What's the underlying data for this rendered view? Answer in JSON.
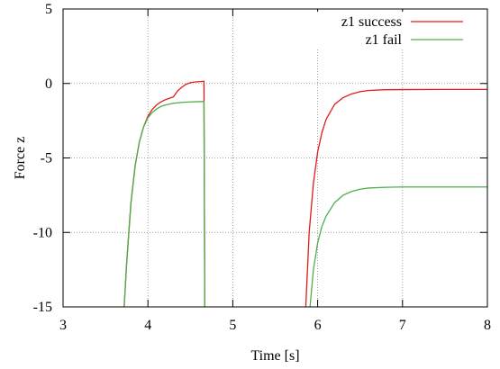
{
  "chart_data": {
    "type": "line",
    "title": "",
    "xlabel": "Time [s]",
    "ylabel": "Force z",
    "xlim": [
      3,
      8
    ],
    "ylim": [
      -15,
      5
    ],
    "xticks": [
      3,
      4,
      5,
      6,
      7,
      8
    ],
    "yticks": [
      -15,
      -10,
      -5,
      0,
      5
    ],
    "grid": true,
    "legend_position": "top-right",
    "series": [
      {
        "name": "z1 success",
        "color": "#e41a1c",
        "segments": [
          {
            "x": [
              3.72,
              3.75,
              3.8,
              3.85,
              3.9,
              3.95,
              4.0,
              4.05,
              4.1,
              4.15,
              4.2,
              4.3,
              4.35,
              4.4,
              4.45,
              4.5,
              4.55,
              4.6,
              4.66,
              4.67
            ],
            "y": [
              -15,
              -12,
              -8,
              -5.5,
              -3.9,
              -2.9,
              -2.2,
              -1.75,
              -1.45,
              -1.25,
              -1.1,
              -0.9,
              -0.5,
              -0.25,
              -0.05,
              0.05,
              0.1,
              0.12,
              0.15,
              -15
            ]
          },
          {
            "x": [
              5.86,
              5.9,
              5.95,
              6.0,
              6.05,
              6.1,
              6.2,
              6.3,
              6.4,
              6.5,
              6.6,
              6.8,
              7.0,
              7.5,
              8.0
            ],
            "y": [
              -15,
              -10,
              -6.7,
              -4.6,
              -3.3,
              -2.4,
              -1.4,
              -0.95,
              -0.7,
              -0.55,
              -0.47,
              -0.42,
              -0.41,
              -0.4,
              -0.4
            ]
          }
        ]
      },
      {
        "name": "z1 fail",
        "color": "#4daf4a",
        "segments": [
          {
            "x": [
              3.72,
              3.75,
              3.8,
              3.85,
              3.9,
              3.95,
              4.0,
              4.05,
              4.1,
              4.15,
              4.2,
              4.3,
              4.4,
              4.5,
              4.6,
              4.66,
              4.67
            ],
            "y": [
              -15,
              -12,
              -8,
              -5.5,
              -3.9,
              -2.9,
              -2.3,
              -1.95,
              -1.72,
              -1.55,
              -1.45,
              -1.33,
              -1.27,
              -1.24,
              -1.22,
              -1.21,
              -15
            ]
          },
          {
            "x": [
              5.91,
              5.95,
              6.0,
              6.05,
              6.1,
              6.2,
              6.3,
              6.4,
              6.5,
              6.6,
              6.8,
              7.0,
              7.5,
              8.0
            ],
            "y": [
              -15,
              -12.5,
              -10.7,
              -9.6,
              -8.9,
              -8.0,
              -7.5,
              -7.25,
              -7.1,
              -7.02,
              -6.97,
              -6.95,
              -6.95,
              -6.95
            ]
          }
        ]
      }
    ]
  }
}
